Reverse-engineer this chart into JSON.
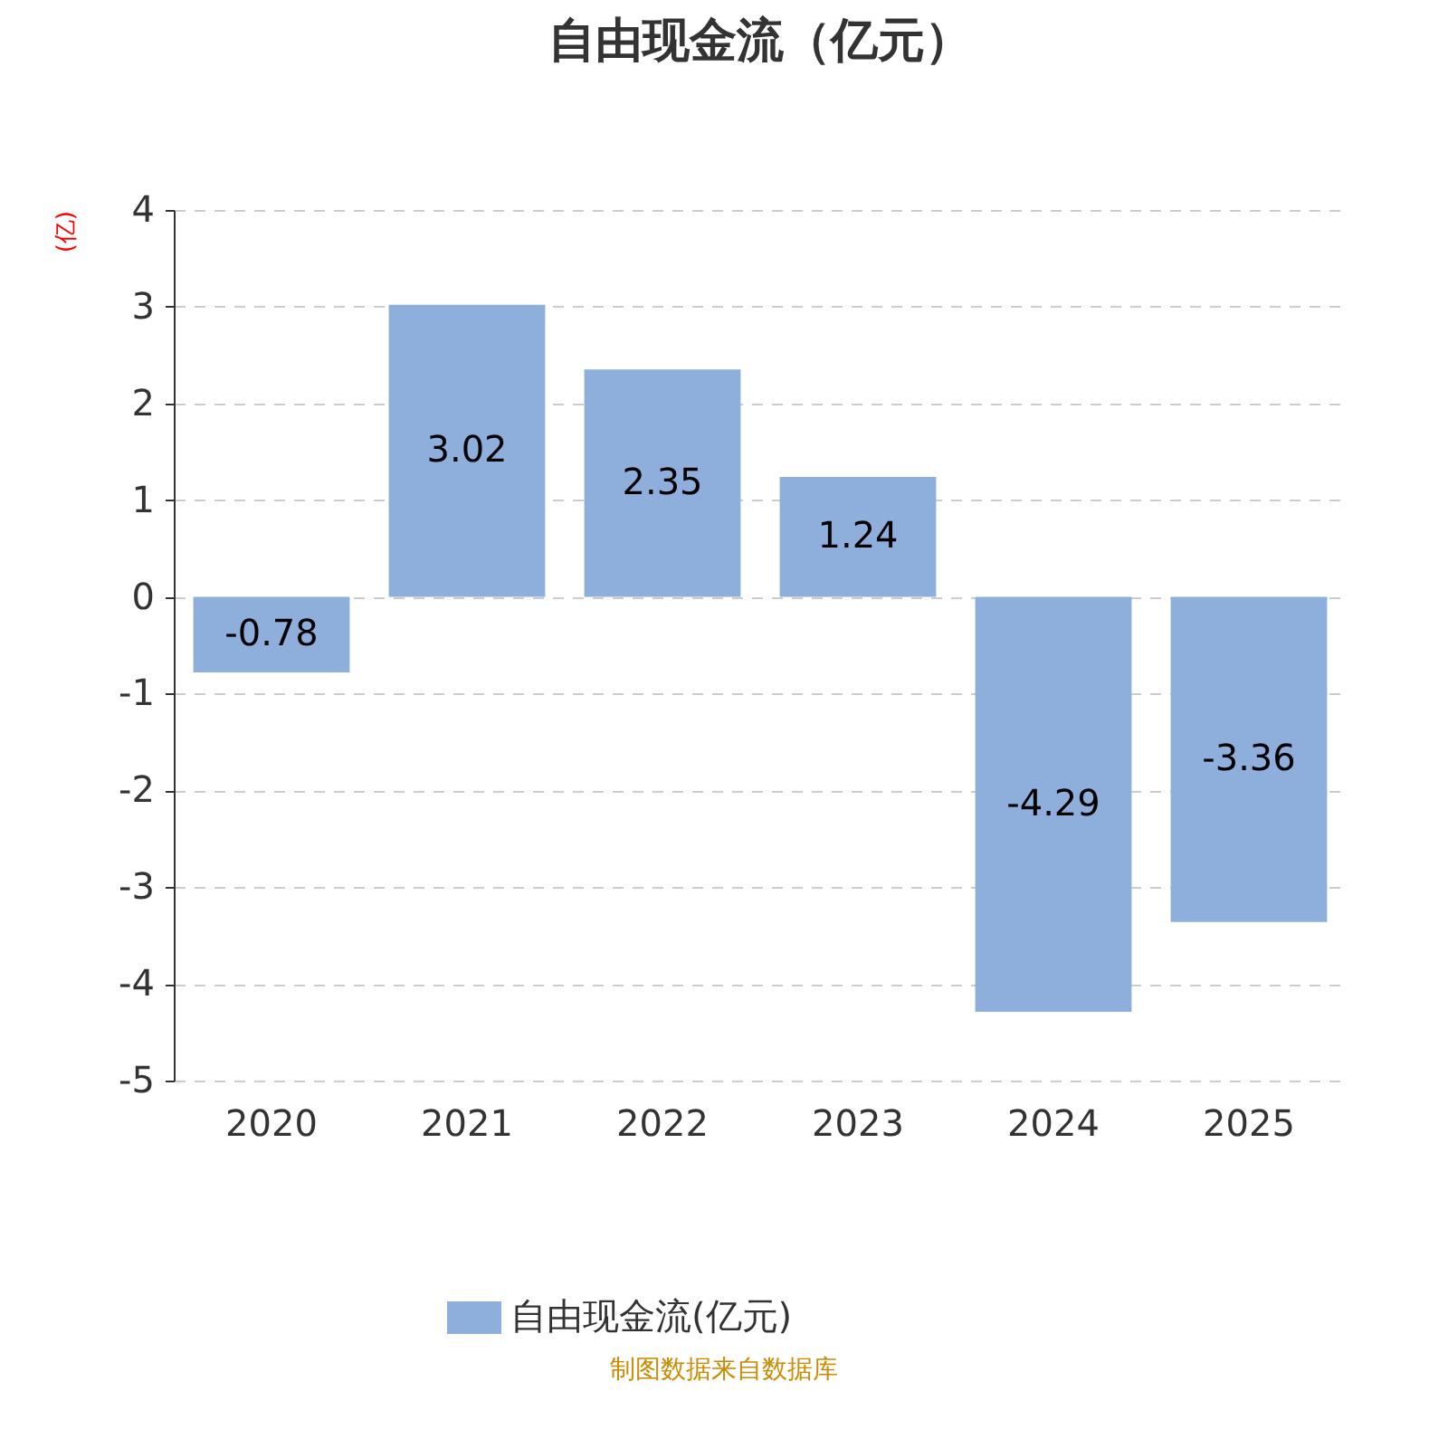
{
  "chart_data": {
    "type": "bar",
    "title": "自由现金流（亿元）",
    "ylabel": "(亿)",
    "categories": [
      "2020",
      "2021",
      "2022",
      "2023",
      "2024",
      "2025"
    ],
    "series": [
      {
        "name": "自由现金流(亿元)",
        "color": "#8eaedb",
        "values": [
          -0.78,
          3.02,
          2.35,
          1.24,
          -4.29,
          -3.36
        ]
      }
    ],
    "ylim": [
      -5,
      4
    ],
    "yticks": [
      -5,
      -4,
      -3,
      -2,
      -1,
      0,
      1,
      2,
      3,
      4
    ],
    "grid": "y",
    "data_labels": true,
    "legend": "bottom",
    "annotations": [
      "制图数据来自数据库"
    ]
  }
}
